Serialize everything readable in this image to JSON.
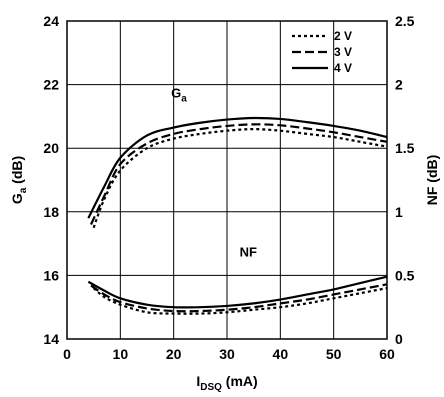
{
  "chart_data": {
    "type": "line",
    "title": "",
    "xlabel": "IDSQ (mA)",
    "xlabel_main": "I",
    "xlabel_sub": "DSQ",
    "xlabel_unit": " (mA)",
    "ylabel_left": "Ga (dB)",
    "ylabel_left_main": "G",
    "ylabel_left_sub": "a",
    "ylabel_left_unit": " (dB)",
    "ylabel_right": "NF (dB)",
    "xlim": [
      0,
      60
    ],
    "ylim_left": [
      14,
      24
    ],
    "ylim_right": [
      0,
      2.5
    ],
    "x_ticks": [
      0,
      10,
      20,
      30,
      40,
      50,
      60
    ],
    "x_tick_labels": [
      "0",
      "10",
      "20",
      "30",
      "40",
      "50",
      "60"
    ],
    "y_left_ticks": [
      14,
      16,
      18,
      20,
      22,
      24
    ],
    "y_left_tick_labels": [
      "14",
      "16",
      "18",
      "20",
      "22",
      "24"
    ],
    "y_right_ticks": [
      0,
      0.5,
      1,
      1.5,
      2,
      2.5
    ],
    "y_right_tick_labels": [
      "0",
      "0.5",
      "1",
      "1.5",
      "2",
      "2.5"
    ],
    "grid": true,
    "legend_position": "top-right",
    "annotations": [
      {
        "main": "G",
        "sub": "a",
        "x": 21,
        "y": 21.6,
        "axis": "left"
      },
      {
        "main": "NF",
        "sub": "",
        "x": 34,
        "y": 0.65,
        "axis": "right"
      }
    ],
    "series": [
      {
        "name": "2 V",
        "curve": "Ga",
        "axis": "left",
        "dash": "dotted",
        "x": [
          5,
          7,
          10,
          15,
          20,
          25,
          30,
          35,
          40,
          45,
          50,
          55,
          60
        ],
        "y": [
          17.5,
          18.4,
          19.3,
          20.0,
          20.3,
          20.45,
          20.55,
          20.6,
          20.55,
          20.45,
          20.35,
          20.2,
          20.05
        ]
      },
      {
        "name": "3 V",
        "curve": "Ga",
        "axis": "left",
        "dash": "dashed",
        "x": [
          4.5,
          7,
          10,
          15,
          20,
          25,
          30,
          35,
          40,
          45,
          50,
          55,
          60
        ],
        "y": [
          17.6,
          18.5,
          19.5,
          20.15,
          20.45,
          20.6,
          20.7,
          20.75,
          20.72,
          20.62,
          20.5,
          20.35,
          20.2
        ]
      },
      {
        "name": "4 V",
        "curve": "Ga",
        "axis": "left",
        "dash": "solid",
        "x": [
          4,
          7,
          10,
          15,
          20,
          25,
          30,
          35,
          40,
          45,
          50,
          55,
          60
        ],
        "y": [
          17.8,
          18.8,
          19.7,
          20.4,
          20.65,
          20.8,
          20.9,
          20.95,
          20.92,
          20.82,
          20.7,
          20.55,
          20.35
        ]
      },
      {
        "name": "2 V",
        "curve": "NF",
        "axis": "right",
        "dash": "dotted",
        "x": [
          5,
          7,
          10,
          15,
          20,
          25,
          30,
          35,
          40,
          45,
          50,
          55,
          60
        ],
        "y": [
          0.4,
          0.33,
          0.27,
          0.21,
          0.2,
          0.2,
          0.21,
          0.23,
          0.25,
          0.28,
          0.32,
          0.36,
          0.4
        ]
      },
      {
        "name": "3 V",
        "curve": "NF",
        "axis": "right",
        "dash": "dashed",
        "x": [
          4.5,
          7,
          10,
          15,
          20,
          25,
          30,
          35,
          40,
          45,
          50,
          55,
          60
        ],
        "y": [
          0.42,
          0.35,
          0.29,
          0.24,
          0.22,
          0.22,
          0.23,
          0.25,
          0.28,
          0.31,
          0.35,
          0.39,
          0.43
        ]
      },
      {
        "name": "4 V",
        "curve": "NF",
        "axis": "right",
        "dash": "solid",
        "x": [
          4,
          7,
          10,
          15,
          20,
          25,
          30,
          35,
          40,
          45,
          50,
          55,
          60
        ],
        "y": [
          0.45,
          0.38,
          0.32,
          0.27,
          0.25,
          0.25,
          0.26,
          0.28,
          0.31,
          0.35,
          0.39,
          0.44,
          0.49
        ]
      }
    ],
    "legend": [
      {
        "label": "2 V",
        "dash": "dotted"
      },
      {
        "label": "3 V",
        "dash": "dashed"
      },
      {
        "label": "4 V",
        "dash": "solid"
      }
    ]
  }
}
